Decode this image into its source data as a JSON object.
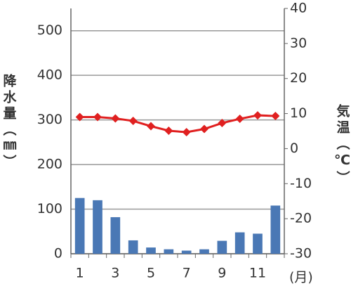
{
  "chart_data": {
    "type": "bar-line",
    "categories": [
      "1",
      null,
      "3",
      null,
      "5",
      null,
      "7",
      null,
      "9",
      null,
      "11",
      null
    ],
    "series": [
      {
        "name": "降水量",
        "type": "bar",
        "color": "#4a78b5",
        "values": [
          125,
          120,
          82,
          30,
          14,
          10,
          7,
          10,
          29,
          48,
          45,
          108
        ]
      },
      {
        "name": "気温",
        "type": "line",
        "axis": "y2",
        "color": "#e02020",
        "values": [
          9.0,
          9.0,
          8.6,
          7.9,
          6.4,
          5.1,
          4.7,
          5.6,
          7.3,
          8.5,
          9.5,
          9.3
        ]
      }
    ],
    "ylabel": "降水量（㎜）",
    "y2label": "気温（℃）",
    "xlabel": "(月)",
    "ylim": [
      0,
      550
    ],
    "yticks": [
      0,
      100,
      200,
      300,
      400,
      500
    ],
    "y2lim": [
      -30,
      40
    ],
    "y2ticks": [
      -30,
      -20,
      -10,
      0,
      10,
      20,
      30,
      40
    ],
    "grid": true
  }
}
